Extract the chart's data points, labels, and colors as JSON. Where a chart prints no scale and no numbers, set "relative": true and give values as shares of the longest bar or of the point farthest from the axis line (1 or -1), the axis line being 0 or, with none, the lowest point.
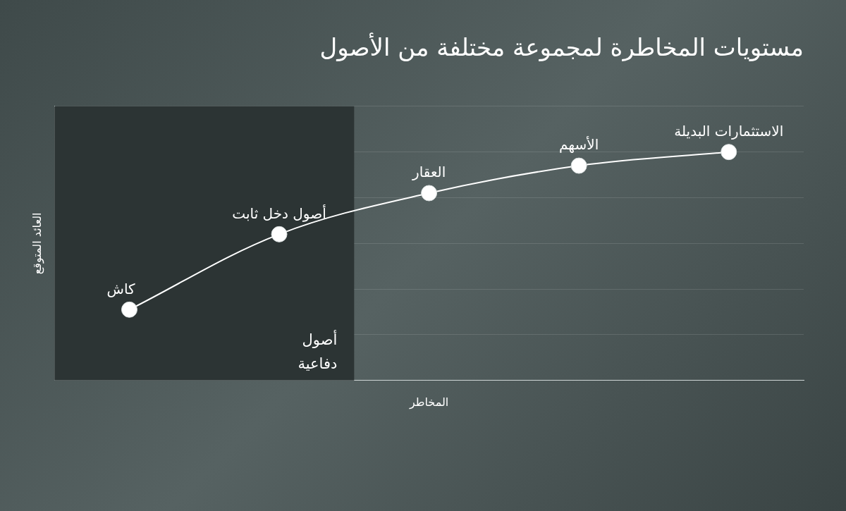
{
  "chart_data": {
    "type": "line",
    "title": "مستويات المخاطرة لمجموعة مختلفة من الأصول",
    "xlabel": "المخاطر",
    "ylabel": "العائد المتوقع",
    "categories": [
      "كاش",
      "أصول دخل ثابت",
      "العقار",
      "الأسهم",
      "الاستثمارات البديلة"
    ],
    "relative": true,
    "series": [
      {
        "color": "#ffffff",
        "values": [
          0.31,
          0.64,
          0.82,
          0.94,
          1
        ]
      }
    ],
    "marker": "circle",
    "grid": "y",
    "legend": false,
    "bands": [
      {
        "axis": "x",
        "from": "كاش",
        "to": "أصول دخل ثابت",
        "label": "أصول\nدفاعية",
        "color": "#2c3434"
      }
    ]
  }
}
